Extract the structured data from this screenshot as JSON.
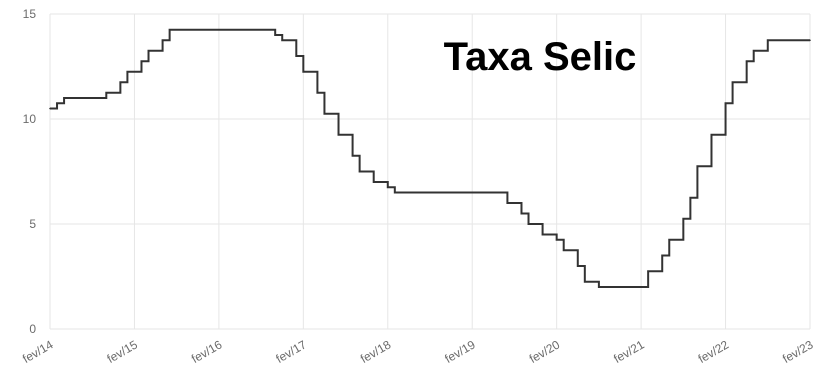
{
  "chart_data": {
    "type": "line",
    "step": true,
    "title": "Taxa Selic",
    "xlabel": "",
    "ylabel": "",
    "ylim": [
      0,
      15
    ],
    "yticks": [
      0,
      5,
      10,
      15
    ],
    "grid": true,
    "x_range": [
      "2014-02",
      "2023-02"
    ],
    "x_ticks": [
      "fev/14",
      "fev/15",
      "fev/16",
      "fev/17",
      "fev/18",
      "fev/19",
      "fev/20",
      "fev/21",
      "fev/22",
      "fev/23"
    ],
    "colors": {
      "line": "#333333",
      "grid": "#e6e6e6",
      "title": "#000000",
      "tick": "#6b6b6b"
    },
    "series": [
      {
        "points": [
          {
            "x": "2014-02",
            "y": 10.5
          },
          {
            "x": "2014-03",
            "y": 10.75
          },
          {
            "x": "2014-04",
            "y": 11.0
          },
          {
            "x": "2014-10",
            "y": 11.25
          },
          {
            "x": "2014-12",
            "y": 11.75
          },
          {
            "x": "2015-01",
            "y": 12.25
          },
          {
            "x": "2015-03",
            "y": 12.75
          },
          {
            "x": "2015-04",
            "y": 13.25
          },
          {
            "x": "2015-06",
            "y": 13.75
          },
          {
            "x": "2015-07",
            "y": 14.25
          },
          {
            "x": "2016-10",
            "y": 14.0
          },
          {
            "x": "2016-11",
            "y": 13.75
          },
          {
            "x": "2017-01",
            "y": 13.0
          },
          {
            "x": "2017-02",
            "y": 12.25
          },
          {
            "x": "2017-04",
            "y": 11.25
          },
          {
            "x": "2017-05",
            "y": 10.25
          },
          {
            "x": "2017-07",
            "y": 9.25
          },
          {
            "x": "2017-09",
            "y": 8.25
          },
          {
            "x": "2017-10",
            "y": 7.5
          },
          {
            "x": "2017-12",
            "y": 7.0
          },
          {
            "x": "2018-02",
            "y": 6.75
          },
          {
            "x": "2018-03",
            "y": 6.5
          },
          {
            "x": "2019-07",
            "y": 6.0
          },
          {
            "x": "2019-09",
            "y": 5.5
          },
          {
            "x": "2019-10",
            "y": 5.0
          },
          {
            "x": "2019-12",
            "y": 4.5
          },
          {
            "x": "2020-02",
            "y": 4.25
          },
          {
            "x": "2020-03",
            "y": 3.75
          },
          {
            "x": "2020-05",
            "y": 3.0
          },
          {
            "x": "2020-06",
            "y": 2.25
          },
          {
            "x": "2020-08",
            "y": 2.0
          },
          {
            "x": "2021-03",
            "y": 2.75
          },
          {
            "x": "2021-05",
            "y": 3.5
          },
          {
            "x": "2021-06",
            "y": 4.25
          },
          {
            "x": "2021-08",
            "y": 5.25
          },
          {
            "x": "2021-09",
            "y": 6.25
          },
          {
            "x": "2021-10",
            "y": 7.75
          },
          {
            "x": "2021-12",
            "y": 9.25
          },
          {
            "x": "2022-02",
            "y": 10.75
          },
          {
            "x": "2022-03",
            "y": 11.75
          },
          {
            "x": "2022-05",
            "y": 12.75
          },
          {
            "x": "2022-06",
            "y": 13.25
          },
          {
            "x": "2022-08",
            "y": 13.75
          },
          {
            "x": "2023-02",
            "y": 13.75
          }
        ]
      }
    ]
  }
}
